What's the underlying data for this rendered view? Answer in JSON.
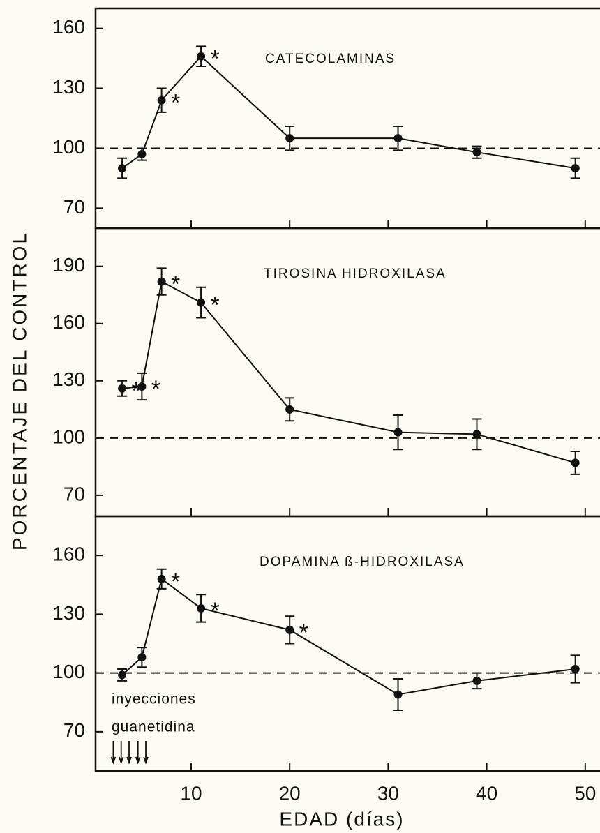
{
  "ylabel": "PORCENTAJE DEL CONTROL",
  "xlabel": "EDAD (días)",
  "chart_data": [
    {
      "type": "line",
      "title": "CATECOLAMINAS",
      "x": [
        3,
        5,
        7,
        11,
        20,
        31,
        39,
        49
      ],
      "series": [
        {
          "color": "#111111",
          "values": [
            90,
            97,
            124,
            146,
            105,
            105,
            98,
            90
          ],
          "errors": [
            5,
            3,
            6,
            5,
            6,
            6,
            3,
            5
          ],
          "significance": [
            null,
            null,
            "*",
            "*",
            null,
            null,
            null,
            null
          ]
        }
      ],
      "reference": 100,
      "xlim": [
        0.3,
        51.5
      ],
      "xticks": [
        10,
        20,
        30,
        40,
        50
      ],
      "ylim": [
        60,
        170
      ],
      "yticks": [
        70,
        100,
        130,
        160
      ]
    },
    {
      "type": "line",
      "title": "TIROSINA HIDROXILASA",
      "x": [
        3,
        5,
        7,
        11,
        20,
        31,
        39,
        49
      ],
      "series": [
        {
          "color": "#111111",
          "values": [
            126,
            127,
            182,
            171,
            115,
            103,
            102,
            87
          ],
          "errors": [
            4,
            7,
            7,
            8,
            6,
            9,
            8,
            6
          ],
          "significance": [
            "*",
            "*",
            "*",
            "*",
            null,
            null,
            null,
            null
          ]
        }
      ],
      "reference": 100,
      "xlim": [
        0.3,
        51.5
      ],
      "xticks": [
        10,
        20,
        30,
        40,
        50
      ],
      "ylim": [
        59,
        210
      ],
      "yticks": [
        70,
        100,
        130,
        160,
        190
      ]
    },
    {
      "type": "line",
      "title": "DOPAMINA ß-HIDROXILASA",
      "x": [
        3,
        5,
        7,
        11,
        20,
        31,
        39,
        49
      ],
      "series": [
        {
          "color": "#111111",
          "values": [
            99,
            108,
            148,
            133,
            122,
            89,
            96,
            102
          ],
          "errors": [
            3,
            5,
            5,
            7,
            7,
            8,
            4,
            7
          ],
          "significance": [
            null,
            null,
            "*",
            "*",
            "*",
            null,
            null,
            null
          ]
        }
      ],
      "reference": 100,
      "annotations": [
        "inyecciones",
        "guanetidina"
      ],
      "injection_days": [
        2.1,
        2.9,
        3.7,
        4.6,
        5.4
      ],
      "xlim": [
        0.3,
        51.5
      ],
      "xticks": [
        10,
        20,
        30,
        40,
        50
      ],
      "ylim": [
        50,
        180
      ],
      "yticks": [
        70,
        100,
        130,
        160
      ]
    }
  ]
}
